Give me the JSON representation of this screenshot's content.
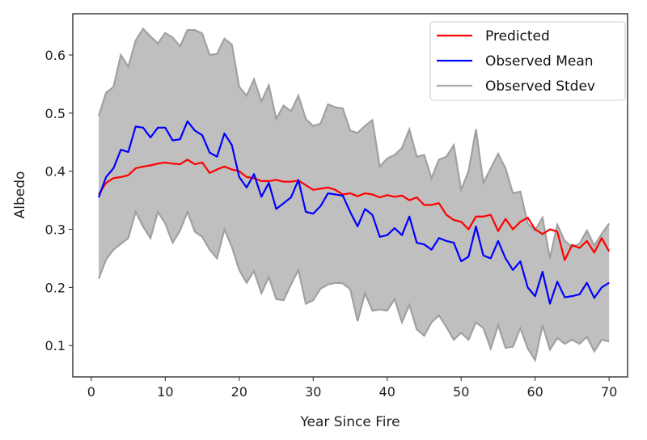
{
  "chart_data": {
    "type": "line",
    "title": "",
    "xlabel": "Year Since Fire",
    "ylabel": "Albedo",
    "xlim": [
      -2.5,
      72.5
    ],
    "ylim": [
      0.046,
      0.671
    ],
    "xticks": [
      0,
      10,
      20,
      30,
      40,
      50,
      60,
      70
    ],
    "yticks": [
      0.1,
      0.2,
      0.3,
      0.4,
      0.5,
      0.6
    ],
    "xtick_labels": [
      "0",
      "10",
      "20",
      "30",
      "40",
      "50",
      "60",
      "70"
    ],
    "ytick_labels": [
      "0.1",
      "0.2",
      "0.3",
      "0.4",
      "0.5",
      "0.6"
    ],
    "grid": false,
    "legend_position": "top-right",
    "x": [
      1,
      2,
      3,
      4,
      5,
      6,
      7,
      8,
      9,
      10,
      11,
      12,
      13,
      14,
      15,
      16,
      17,
      18,
      19,
      20,
      21,
      22,
      23,
      24,
      25,
      26,
      27,
      28,
      29,
      30,
      31,
      32,
      33,
      34,
      35,
      36,
      37,
      38,
      39,
      40,
      41,
      42,
      43,
      44,
      45,
      46,
      47,
      48,
      49,
      50,
      51,
      52,
      53,
      54,
      55,
      56,
      57,
      58,
      59,
      60,
      61,
      62,
      63,
      64,
      65,
      66,
      67,
      68,
      69,
      70
    ],
    "series": [
      {
        "name": "Predicted",
        "color": "#ff0000",
        "values": [
          0.36,
          0.38,
          0.388,
          0.39,
          0.393,
          0.405,
          0.408,
          0.41,
          0.413,
          0.415,
          0.413,
          0.412,
          0.42,
          0.412,
          0.415,
          0.397,
          0.403,
          0.408,
          0.403,
          0.4,
          0.39,
          0.388,
          0.383,
          0.383,
          0.385,
          0.382,
          0.382,
          0.384,
          0.376,
          0.368,
          0.37,
          0.372,
          0.368,
          0.36,
          0.362,
          0.357,
          0.362,
          0.36,
          0.355,
          0.359,
          0.356,
          0.358,
          0.35,
          0.355,
          0.342,
          0.342,
          0.345,
          0.325,
          0.316,
          0.313,
          0.3,
          0.322,
          0.322,
          0.325,
          0.297,
          0.318,
          0.3,
          0.313,
          0.32,
          0.3,
          0.292,
          0.3,
          0.296,
          0.247,
          0.273,
          0.268,
          0.28,
          0.26,
          0.285,
          0.262
        ]
      },
      {
        "name": "Observed Mean",
        "color": "#0000ff",
        "values": [
          0.355,
          0.39,
          0.405,
          0.437,
          0.433,
          0.477,
          0.475,
          0.458,
          0.475,
          0.475,
          0.453,
          0.455,
          0.486,
          0.47,
          0.462,
          0.432,
          0.425,
          0.465,
          0.445,
          0.39,
          0.372,
          0.395,
          0.356,
          0.38,
          0.335,
          0.345,
          0.355,
          0.385,
          0.33,
          0.327,
          0.34,
          0.362,
          0.36,
          0.358,
          0.33,
          0.305,
          0.335,
          0.325,
          0.287,
          0.29,
          0.302,
          0.29,
          0.322,
          0.277,
          0.274,
          0.265,
          0.285,
          0.28,
          0.277,
          0.245,
          0.253,
          0.305,
          0.255,
          0.25,
          0.28,
          0.25,
          0.23,
          0.245,
          0.2,
          0.185,
          0.227,
          0.172,
          0.21,
          0.183,
          0.185,
          0.188,
          0.208,
          0.182,
          0.2,
          0.208
        ]
      },
      {
        "name": "Observed Stdev",
        "color": "#a0a0a0",
        "fill": "#bfbfbf",
        "upper": [
          0.495,
          0.535,
          0.545,
          0.6,
          0.58,
          0.625,
          0.645,
          0.632,
          0.62,
          0.638,
          0.63,
          0.615,
          0.643,
          0.643,
          0.637,
          0.6,
          0.602,
          0.628,
          0.618,
          0.545,
          0.53,
          0.558,
          0.52,
          0.548,
          0.49,
          0.513,
          0.503,
          0.53,
          0.49,
          0.478,
          0.482,
          0.515,
          0.51,
          0.508,
          0.47,
          0.466,
          0.478,
          0.488,
          0.408,
          0.422,
          0.428,
          0.44,
          0.472,
          0.425,
          0.428,
          0.388,
          0.42,
          0.425,
          0.445,
          0.368,
          0.4,
          0.472,
          0.38,
          0.405,
          0.43,
          0.405,
          0.362,
          0.365,
          0.31,
          0.298,
          0.32,
          0.25,
          0.308,
          0.28,
          0.27,
          0.275,
          0.298,
          0.272,
          0.292,
          0.31
        ],
        "lower": [
          0.215,
          0.248,
          0.265,
          0.275,
          0.285,
          0.33,
          0.305,
          0.285,
          0.33,
          0.31,
          0.277,
          0.298,
          0.33,
          0.296,
          0.287,
          0.265,
          0.25,
          0.3,
          0.27,
          0.23,
          0.208,
          0.228,
          0.19,
          0.218,
          0.18,
          0.178,
          0.205,
          0.23,
          0.172,
          0.178,
          0.198,
          0.205,
          0.208,
          0.207,
          0.197,
          0.142,
          0.19,
          0.16,
          0.162,
          0.16,
          0.18,
          0.14,
          0.17,
          0.128,
          0.117,
          0.14,
          0.152,
          0.132,
          0.11,
          0.122,
          0.11,
          0.14,
          0.13,
          0.095,
          0.135,
          0.096,
          0.098,
          0.13,
          0.095,
          0.075,
          0.135,
          0.093,
          0.113,
          0.103,
          0.11,
          0.103,
          0.115,
          0.09,
          0.11,
          0.107
        ]
      }
    ]
  }
}
